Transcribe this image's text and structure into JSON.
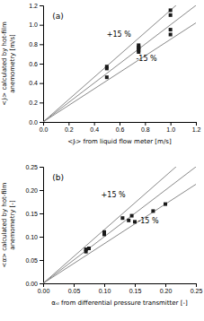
{
  "chart_data": [
    {
      "type": "scatter",
      "title": "(a)",
      "xlabel": "<Jₗ> from liquid flow meter [m/s]",
      "ylabel": "<Jₗ> calculated by hot-film anemometry [m/s]",
      "xlim": [
        0.0,
        1.2
      ],
      "ylim": [
        0.0,
        1.2
      ],
      "xticks": [
        {
          "value": 0.0,
          "label": "0.0"
        },
        0.2,
        0.4,
        0.6,
        0.8,
        {
          "value": 1.0,
          "label": "1.0"
        },
        1.2
      ],
      "yticks": [
        {
          "value": 0.0,
          "label": "0.0"
        },
        0.2,
        0.4,
        0.6,
        0.8,
        {
          "value": 1.0,
          "label": "1.0"
        },
        1.2
      ],
      "x": [
        0.5,
        0.5,
        0.5,
        0.75,
        0.75,
        0.75,
        0.75,
        0.75,
        1.0,
        1.0,
        1.0,
        1.0
      ],
      "values": [
        0.57,
        0.55,
        0.46,
        0.79,
        0.77,
        0.76,
        0.74,
        0.72,
        1.15,
        1.1,
        0.95,
        0.9
      ],
      "color": "#1a1a1a",
      "marker": "square",
      "reference_lines": [
        {
          "slope": 1,
          "color": "#888888"
        },
        {
          "slope": 1.15,
          "color": "#888888"
        },
        {
          "slope": 0.85,
          "color": "#888888"
        }
      ],
      "annotations": [
        {
          "text": "+15 %",
          "x": 0.5,
          "y": 0.88
        },
        {
          "text": "-15 %",
          "x": 0.73,
          "y": 0.63
        }
      ]
    },
    {
      "type": "scatter",
      "title": "(b)",
      "xlabel": "αₛₗ from differential pressure transmitter [-]",
      "ylabel": "<α> calculated by hot-film anemometry [-]",
      "xlim": [
        0.0,
        0.25
      ],
      "ylim": [
        0.0,
        0.25
      ],
      "xticks": [
        {
          "value": 0.0,
          "label": "0.00"
        },
        0.05,
        {
          "value": 0.1,
          "label": "0.10"
        },
        0.15,
        {
          "value": 0.2,
          "label": "0.20"
        },
        0.25
      ],
      "yticks": [
        {
          "value": 0.0,
          "label": "0.00"
        },
        0.05,
        {
          "value": 0.1,
          "label": "0.10"
        },
        0.15,
        {
          "value": 0.2,
          "label": "0.20"
        },
        0.25
      ],
      "x": [
        0.07,
        0.07,
        0.075,
        0.1,
        0.1,
        0.13,
        0.14,
        0.145,
        0.15,
        0.18,
        0.2
      ],
      "values": [
        0.068,
        0.073,
        0.075,
        0.11,
        0.105,
        0.14,
        0.135,
        0.145,
        0.132,
        0.155,
        0.17
      ],
      "color": "#1a1a1a",
      "marker": "square",
      "reference_lines": [
        {
          "slope": 1,
          "color": "#888888"
        },
        {
          "slope": 1.15,
          "color": "#888888"
        },
        {
          "slope": 0.85,
          "color": "#888888"
        }
      ],
      "annotations": [
        {
          "text": "+15 %",
          "x": 0.095,
          "y": 0.185
        },
        {
          "text": "-15 %",
          "x": 0.155,
          "y": 0.128
        }
      ]
    }
  ]
}
